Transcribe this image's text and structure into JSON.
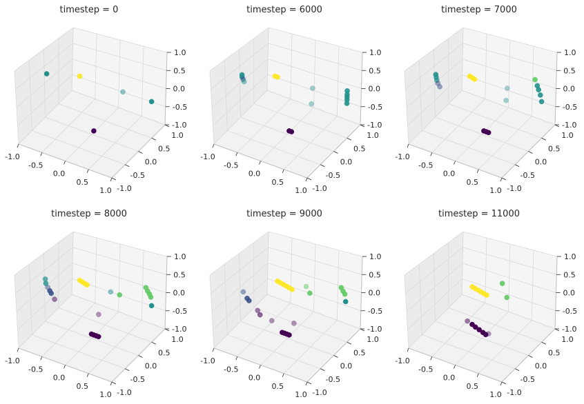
{
  "figure": {
    "panel_count": 6
  },
  "colors": {
    "pane_left": "#ebebeb",
    "pane_right": "#f5f5f5",
    "pane_floor": "#f2f2f2",
    "grid": "#d9d9d9",
    "axis_line": "#bfbfbf",
    "tick_text": "#262626",
    "cluster_purple": "#440154",
    "cluster_blue": "#3b528b",
    "cluster_teal": "#21918c",
    "cluster_green": "#5ec962",
    "cluster_yellow": "#fde725"
  },
  "chart_data": [
    {
      "type": "scatter",
      "projection": "3d",
      "title": "timestep = 0",
      "xlim": [
        -1.0,
        1.0
      ],
      "ylim": [
        -1.0,
        1.0
      ],
      "zlim": [
        -1.0,
        1.0
      ],
      "xticks": [
        "-1.0",
        "-0.5",
        "0.0",
        "0.5",
        "1.0"
      ],
      "yticks": [
        "-1.0",
        "-0.5",
        "0.0",
        "0.5",
        "1.0"
      ],
      "zticks": [
        "-1.0",
        "-0.5",
        "0.0",
        "0.5",
        "1.0"
      ],
      "grid": true,
      "points": [
        {
          "x": -0.05,
          "y": -0.35,
          "z": 0.88,
          "color": "#fde725",
          "alpha": 0.95
        },
        {
          "x": -0.92,
          "y": -0.05,
          "z": 0.35,
          "color": "#21918c",
          "alpha": 1.0
        },
        {
          "x": 0.62,
          "y": 0.05,
          "z": 0.45,
          "color": "#21918c",
          "alpha": 0.5
        },
        {
          "x": 0.95,
          "y": 0.55,
          "z": -0.05,
          "color": "#21918c",
          "alpha": 1.0
        },
        {
          "x": 0.1,
          "y": -0.1,
          "z": -0.78,
          "color": "#440154",
          "alpha": 1.0
        }
      ]
    },
    {
      "type": "scatter",
      "projection": "3d",
      "title": "timestep = 6000",
      "xlim": [
        -1.0,
        1.0
      ],
      "ylim": [
        -1.0,
        1.0
      ],
      "zlim": [
        -1.0,
        1.0
      ],
      "xticks": [
        "-1.0",
        "-0.5",
        "0.0",
        "0.5",
        "1.0"
      ],
      "yticks": [
        "-1.0",
        "-0.5",
        "0.0",
        "0.5",
        "1.0"
      ],
      "zticks": [
        "-1.0",
        "-0.5",
        "0.0",
        "0.5",
        "1.0"
      ],
      "grid": true,
      "points": [
        {
          "x": -0.05,
          "y": -0.35,
          "z": 0.88,
          "color": "#fde725",
          "alpha": 0.95
        },
        {
          "x": 0.0,
          "y": -0.35,
          "z": 0.88,
          "color": "#fde725",
          "alpha": 0.95
        },
        {
          "x": -0.92,
          "y": -0.05,
          "z": 0.32,
          "color": "#21918c",
          "alpha": 0.9
        },
        {
          "x": -0.92,
          "y": -0.05,
          "z": 0.26,
          "color": "#21918c",
          "alpha": 0.9
        },
        {
          "x": -0.9,
          "y": -0.05,
          "z": 0.2,
          "color": "#3b528b",
          "alpha": 0.6
        },
        {
          "x": -0.88,
          "y": -0.05,
          "z": 0.14,
          "color": "#21918c",
          "alpha": 0.5
        },
        {
          "x": 0.5,
          "y": 0.05,
          "z": 0.5,
          "color": "#21918c",
          "alpha": 0.4
        },
        {
          "x": 0.48,
          "y": 0.05,
          "z": 0.05,
          "color": "#21918c",
          "alpha": 0.4
        },
        {
          "x": 0.95,
          "y": 0.55,
          "z": 0.25,
          "color": "#21918c",
          "alpha": 0.9
        },
        {
          "x": 0.95,
          "y": 0.55,
          "z": 0.15,
          "color": "#21918c",
          "alpha": 0.9
        },
        {
          "x": 0.95,
          "y": 0.55,
          "z": 0.08,
          "color": "#21918c",
          "alpha": 0.9
        },
        {
          "x": 0.95,
          "y": 0.55,
          "z": 0.0,
          "color": "#21918c",
          "alpha": 0.9
        },
        {
          "x": 0.95,
          "y": 0.55,
          "z": -0.1,
          "color": "#21918c",
          "alpha": 0.9
        },
        {
          "x": 0.1,
          "y": -0.1,
          "z": -0.78,
          "color": "#440154",
          "alpha": 1.0
        },
        {
          "x": 0.15,
          "y": -0.1,
          "z": -0.78,
          "color": "#440154",
          "alpha": 1.0
        }
      ]
    },
    {
      "type": "scatter",
      "projection": "3d",
      "title": "timestep = 7000",
      "xlim": [
        -1.0,
        1.0
      ],
      "ylim": [
        -1.0,
        1.0
      ],
      "zlim": [
        -1.0,
        1.0
      ],
      "xticks": [
        "-1.0",
        "-0.5",
        "0.0",
        "0.5",
        "1.0"
      ],
      "yticks": [
        "-1.0",
        "-0.5",
        "0.0",
        "0.5",
        "1.0"
      ],
      "zticks": [
        "-1.0",
        "-0.5",
        "0.0",
        "0.5",
        "1.0"
      ],
      "grid": true,
      "points": [
        {
          "x": -0.05,
          "y": -0.35,
          "z": 0.88,
          "color": "#fde725",
          "alpha": 0.95
        },
        {
          "x": 0.0,
          "y": -0.35,
          "z": 0.86,
          "color": "#fde725",
          "alpha": 0.95
        },
        {
          "x": 0.05,
          "y": -0.35,
          "z": 0.84,
          "color": "#fde725",
          "alpha": 0.95
        },
        {
          "x": -0.94,
          "y": -0.05,
          "z": 0.32,
          "color": "#21918c",
          "alpha": 0.9
        },
        {
          "x": -0.93,
          "y": -0.05,
          "z": 0.24,
          "color": "#21918c",
          "alpha": 0.8
        },
        {
          "x": -0.92,
          "y": -0.05,
          "z": 0.16,
          "color": "#21918c",
          "alpha": 0.7
        },
        {
          "x": -0.9,
          "y": -0.05,
          "z": 0.08,
          "color": "#3b528b",
          "alpha": 0.5
        },
        {
          "x": -0.86,
          "y": -0.05,
          "z": 0.0,
          "color": "#3b528b",
          "alpha": 0.5
        },
        {
          "x": 0.5,
          "y": 0.05,
          "z": 0.5,
          "color": "#21918c",
          "alpha": 0.4
        },
        {
          "x": 0.48,
          "y": 0.05,
          "z": 0.15,
          "color": "#21918c",
          "alpha": 0.4
        },
        {
          "x": 0.8,
          "y": 0.55,
          "z": 0.5,
          "color": "#5ec962",
          "alpha": 0.9
        },
        {
          "x": 0.85,
          "y": 0.55,
          "z": 0.35,
          "color": "#21918c",
          "alpha": 0.9
        },
        {
          "x": 0.88,
          "y": 0.55,
          "z": 0.25,
          "color": "#21918c",
          "alpha": 0.9
        },
        {
          "x": 0.92,
          "y": 0.55,
          "z": 0.12,
          "color": "#21918c",
          "alpha": 0.9
        },
        {
          "x": 0.95,
          "y": 0.55,
          "z": -0.05,
          "color": "#21918c",
          "alpha": 0.9
        },
        {
          "x": 0.1,
          "y": -0.1,
          "z": -0.78,
          "color": "#440154",
          "alpha": 1.0
        },
        {
          "x": 0.15,
          "y": -0.1,
          "z": -0.78,
          "color": "#440154",
          "alpha": 1.0
        },
        {
          "x": 0.2,
          "y": -0.1,
          "z": -0.78,
          "color": "#440154",
          "alpha": 1.0
        }
      ]
    },
    {
      "type": "scatter",
      "projection": "3d",
      "title": "timestep = 8000",
      "xlim": [
        -1.0,
        1.0
      ],
      "ylim": [
        -1.0,
        1.0
      ],
      "zlim": [
        -1.0,
        1.0
      ],
      "xticks": [
        "-1.0",
        "-0.5",
        "0.0",
        "0.5",
        "1.0"
      ],
      "yticks": [
        "-1.0",
        "-0.5",
        "0.0",
        "0.5",
        "1.0"
      ],
      "zticks": [
        "-1.0",
        "-0.5",
        "0.0",
        "0.5",
        "1.0"
      ],
      "grid": true,
      "points": [
        {
          "x": -0.05,
          "y": -0.35,
          "z": 0.88,
          "color": "#fde725",
          "alpha": 0.95
        },
        {
          "x": 0.0,
          "y": -0.35,
          "z": 0.86,
          "color": "#fde725",
          "alpha": 0.95
        },
        {
          "x": 0.05,
          "y": -0.35,
          "z": 0.84,
          "color": "#fde725",
          "alpha": 0.95
        },
        {
          "x": 0.1,
          "y": -0.35,
          "z": 0.82,
          "color": "#fde725",
          "alpha": 0.95
        },
        {
          "x": -0.95,
          "y": -0.05,
          "z": 0.3,
          "color": "#21918c",
          "alpha": 0.7
        },
        {
          "x": -0.94,
          "y": -0.05,
          "z": 0.18,
          "color": "#21918c",
          "alpha": 0.8
        },
        {
          "x": -0.9,
          "y": -0.05,
          "z": 0.08,
          "color": "#3b528b",
          "alpha": 0.5
        },
        {
          "x": -0.86,
          "y": -0.05,
          "z": 0.0,
          "color": "#3b528b",
          "alpha": 0.9
        },
        {
          "x": -0.83,
          "y": -0.05,
          "z": -0.06,
          "color": "#3b528b",
          "alpha": 0.9
        },
        {
          "x": -0.76,
          "y": -0.05,
          "z": -0.2,
          "color": "#440154",
          "alpha": 0.5
        },
        {
          "x": 0.42,
          "y": -0.05,
          "z": 0.55,
          "color": "#21918c",
          "alpha": 0.5
        },
        {
          "x": 0.55,
          "y": 0.05,
          "z": 0.45,
          "color": "#5ec962",
          "alpha": 0.9
        },
        {
          "x": 0.2,
          "y": -0.1,
          "z": -0.15,
          "color": "#440154",
          "alpha": 0.4
        },
        {
          "x": 0.82,
          "y": 0.55,
          "z": 0.4,
          "color": "#5ec962",
          "alpha": 0.9
        },
        {
          "x": 0.86,
          "y": 0.55,
          "z": 0.32,
          "color": "#5ec962",
          "alpha": 0.9
        },
        {
          "x": 0.9,
          "y": 0.55,
          "z": 0.25,
          "color": "#5ec962",
          "alpha": 0.9
        },
        {
          "x": 0.93,
          "y": 0.55,
          "z": 0.18,
          "color": "#5ec962",
          "alpha": 0.9
        },
        {
          "x": 0.95,
          "y": 0.55,
          "z": -0.05,
          "color": "#21918c",
          "alpha": 1.0
        },
        {
          "x": 0.05,
          "y": -0.1,
          "z": -0.78,
          "color": "#440154",
          "alpha": 1.0
        },
        {
          "x": 0.1,
          "y": -0.1,
          "z": -0.78,
          "color": "#440154",
          "alpha": 1.0
        },
        {
          "x": 0.15,
          "y": -0.1,
          "z": -0.78,
          "color": "#440154",
          "alpha": 1.0
        },
        {
          "x": 0.2,
          "y": -0.1,
          "z": -0.78,
          "color": "#440154",
          "alpha": 1.0
        }
      ]
    },
    {
      "type": "scatter",
      "projection": "3d",
      "title": "timestep = 9000",
      "xlim": [
        -1.0,
        1.0
      ],
      "ylim": [
        -1.0,
        1.0
      ],
      "zlim": [
        -1.0,
        1.0
      ],
      "xticks": [
        "-1.0",
        "-0.5",
        "0.0",
        "0.5",
        "1.0"
      ],
      "yticks": [
        "-1.0",
        "-0.5",
        "0.0",
        "0.5",
        "1.0"
      ],
      "zticks": [
        "-1.0",
        "-0.5",
        "0.0",
        "0.5",
        "1.0"
      ],
      "grid": true,
      "points": [
        {
          "x": 0.0,
          "y": -0.35,
          "z": 0.88,
          "color": "#fde725",
          "alpha": 0.95
        },
        {
          "x": 0.06,
          "y": -0.35,
          "z": 0.86,
          "color": "#fde725",
          "alpha": 0.95
        },
        {
          "x": 0.12,
          "y": -0.35,
          "z": 0.84,
          "color": "#fde725",
          "alpha": 0.95
        },
        {
          "x": 0.18,
          "y": -0.35,
          "z": 0.82,
          "color": "#fde725",
          "alpha": 0.95
        },
        {
          "x": 0.24,
          "y": -0.35,
          "z": 0.8,
          "color": "#fde725",
          "alpha": 0.95
        },
        {
          "x": 0.3,
          "y": -0.35,
          "z": 0.78,
          "color": "#fde725",
          "alpha": 0.95
        },
        {
          "x": 0.45,
          "y": -0.1,
          "z": 0.75,
          "color": "#5ec962",
          "alpha": 0.5
        },
        {
          "x": 0.5,
          "y": -0.05,
          "z": 0.55,
          "color": "#5ec962",
          "alpha": 0.9
        },
        {
          "x": 0.82,
          "y": 0.55,
          "z": 0.4,
          "color": "#5ec962",
          "alpha": 0.9
        },
        {
          "x": 0.86,
          "y": 0.55,
          "z": 0.32,
          "color": "#5ec962",
          "alpha": 0.9
        },
        {
          "x": 0.9,
          "y": 0.55,
          "z": 0.25,
          "color": "#5ec962",
          "alpha": 0.9
        },
        {
          "x": 0.92,
          "y": 0.55,
          "z": 0.05,
          "color": "#21918c",
          "alpha": 1.0
        },
        {
          "x": -0.9,
          "y": -0.05,
          "z": -0.05,
          "color": "#3b528b",
          "alpha": 0.5
        },
        {
          "x": -0.82,
          "y": -0.05,
          "z": -0.2,
          "color": "#3b528b",
          "alpha": 0.9
        },
        {
          "x": -0.78,
          "y": -0.05,
          "z": -0.25,
          "color": "#3b528b",
          "alpha": 0.9
        },
        {
          "x": -0.6,
          "y": -0.05,
          "z": -0.45,
          "color": "#440154",
          "alpha": 0.5
        },
        {
          "x": -0.55,
          "y": -0.05,
          "z": -0.55,
          "color": "#440154",
          "alpha": 0.6
        },
        {
          "x": -0.3,
          "y": -0.05,
          "z": -0.6,
          "color": "#440154",
          "alpha": 0.4
        },
        {
          "x": 0.2,
          "y": -0.1,
          "z": -0.4,
          "color": "#440154",
          "alpha": 0.4
        },
        {
          "x": -0.05,
          "y": -0.1,
          "z": -0.78,
          "color": "#440154",
          "alpha": 1.0
        },
        {
          "x": 0.0,
          "y": -0.1,
          "z": -0.78,
          "color": "#440154",
          "alpha": 1.0
        },
        {
          "x": 0.05,
          "y": -0.1,
          "z": -0.78,
          "color": "#440154",
          "alpha": 1.0
        },
        {
          "x": 0.1,
          "y": -0.1,
          "z": -0.78,
          "color": "#440154",
          "alpha": 1.0
        }
      ]
    },
    {
      "type": "scatter",
      "projection": "3d",
      "title": "timestep = 11000",
      "xlim": [
        -1.0,
        1.0
      ],
      "ylim": [
        -1.0,
        1.0
      ],
      "zlim": [
        -1.0,
        1.0
      ],
      "xticks": [
        "-1.0",
        "-0.5",
        "0.0",
        "0.5",
        "1.0"
      ],
      "yticks": [
        "-1.0",
        "-0.5",
        "0.0",
        "0.5",
        "1.0"
      ],
      "zticks": [
        "-1.0",
        "-0.5",
        "0.0",
        "0.5",
        "1.0"
      ],
      "grid": true,
      "points": [
        {
          "x": 0.48,
          "y": -0.1,
          "z": 0.85,
          "color": "#5ec962",
          "alpha": 0.9
        },
        {
          "x": 0.0,
          "y": -0.35,
          "z": 0.72,
          "color": "#fde725",
          "alpha": 0.95
        },
        {
          "x": 0.06,
          "y": -0.35,
          "z": 0.7,
          "color": "#fde725",
          "alpha": 0.95
        },
        {
          "x": 0.12,
          "y": -0.35,
          "z": 0.68,
          "color": "#fde725",
          "alpha": 0.95
        },
        {
          "x": 0.18,
          "y": -0.35,
          "z": 0.66,
          "color": "#fde725",
          "alpha": 0.95
        },
        {
          "x": 0.24,
          "y": -0.35,
          "z": 0.64,
          "color": "#fde725",
          "alpha": 0.95
        },
        {
          "x": 0.3,
          "y": -0.35,
          "z": 0.62,
          "color": "#fde725",
          "alpha": 0.95
        },
        {
          "x": 0.55,
          "y": -0.05,
          "z": 0.45,
          "color": "#5ec962",
          "alpha": 0.9
        },
        {
          "x": -0.25,
          "y": -0.1,
          "z": -0.55,
          "color": "#440154",
          "alpha": 0.5
        },
        {
          "x": -0.15,
          "y": -0.1,
          "z": -0.6,
          "color": "#440154",
          "alpha": 1.0
        },
        {
          "x": -0.08,
          "y": -0.1,
          "z": -0.64,
          "color": "#440154",
          "alpha": 1.0
        },
        {
          "x": 0.0,
          "y": -0.1,
          "z": -0.68,
          "color": "#440154",
          "alpha": 1.0
        },
        {
          "x": 0.08,
          "y": -0.1,
          "z": -0.72,
          "color": "#440154",
          "alpha": 1.0
        },
        {
          "x": 0.14,
          "y": -0.1,
          "z": -0.75,
          "color": "#440154",
          "alpha": 1.0
        },
        {
          "x": 0.2,
          "y": -0.1,
          "z": -0.7,
          "color": "#440154",
          "alpha": 0.4
        }
      ]
    }
  ]
}
